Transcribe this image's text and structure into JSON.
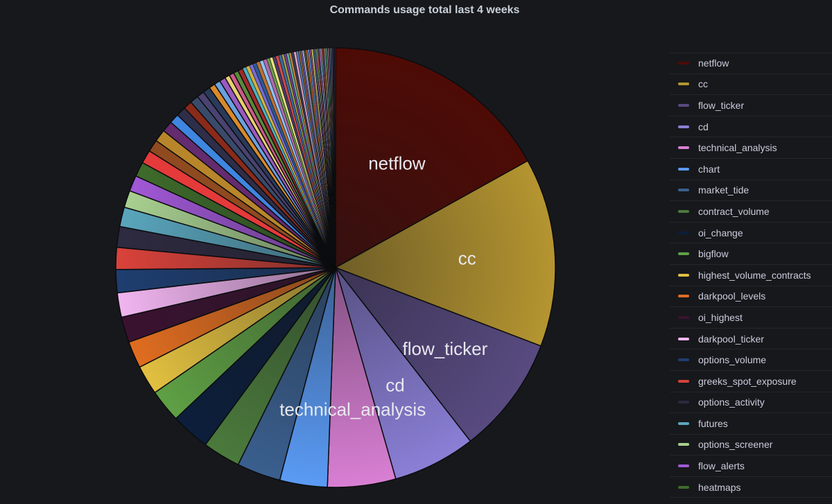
{
  "chart_data": {
    "type": "pie",
    "title": "Commands usage total last 4 weeks",
    "labeled_slices": [
      "netflow",
      "cc",
      "flow_ticker",
      "cd",
      "technical_analysis"
    ],
    "slices": [
      {
        "name": "netflow",
        "value": 18.9,
        "color": "#4e0b06"
      },
      {
        "name": "cc",
        "value": 15.5,
        "color": "#b59530"
      },
      {
        "name": "flow_ticker",
        "value": 9.7,
        "color": "#584a80"
      },
      {
        "name": "cd",
        "value": 6.8,
        "color": "#8a7fd6"
      },
      {
        "name": "technical_analysis",
        "value": 5.6,
        "color": "#d97fd4"
      },
      {
        "name": "chart",
        "value": 3.9,
        "color": "#5a9bf5"
      },
      {
        "name": "market_tide",
        "value": 3.6,
        "color": "#3a5f8e"
      },
      {
        "name": "contract_volume",
        "value": 3.1,
        "color": "#4b7a3c"
      },
      {
        "name": "oi_change",
        "value": 3.2,
        "color": "#0c1e3a"
      },
      {
        "name": "bigflow",
        "value": 2.7,
        "color": "#5fa044"
      },
      {
        "name": "highest_volume_contracts",
        "value": 2.4,
        "color": "#e2c040"
      },
      {
        "name": "darkpool_levels",
        "value": 2.2,
        "color": "#e06d20"
      },
      {
        "name": "oi_highest",
        "value": 2.1,
        "color": "#3a1230"
      },
      {
        "name": "darkpool_ticker",
        "value": 2.0,
        "color": "#f1b5f0"
      },
      {
        "name": "options_volume",
        "value": 1.9,
        "color": "#1e3e70"
      },
      {
        "name": "greeks_spot_exposure",
        "value": 1.8,
        "color": "#d9423a"
      },
      {
        "name": "options_activity",
        "value": 1.7,
        "color": "#2e2a40"
      },
      {
        "name": "futures",
        "value": 1.6,
        "color": "#5aa6bd"
      },
      {
        "name": "options_screener",
        "value": 1.4,
        "color": "#a8d090"
      },
      {
        "name": "flow_alerts",
        "value": 1.3,
        "color": "#a158d6"
      },
      {
        "name": "heatmaps",
        "value": 1.2,
        "color": "#3e6b2a"
      }
    ],
    "minor_slices": [
      {
        "value": 1.1,
        "color": "#e43a3a"
      },
      {
        "value": 1.0,
        "color": "#8f4a20"
      },
      {
        "value": 1.0,
        "color": "#b8862a"
      },
      {
        "value": 0.9,
        "color": "#642b6e"
      },
      {
        "value": 0.8,
        "color": "#3e86e0"
      },
      {
        "value": 0.8,
        "color": "#2e2e48"
      },
      {
        "value": 0.7,
        "color": "#8a2a1a"
      },
      {
        "value": 0.7,
        "color": "#3a4a6a"
      },
      {
        "value": 0.6,
        "color": "#4a4270"
      },
      {
        "value": 0.6,
        "color": "#2a3a5a"
      },
      {
        "value": 0.5,
        "color": "#d98a2a"
      },
      {
        "value": 0.5,
        "color": "#6aa0e0"
      },
      {
        "value": 0.5,
        "color": "#9a5ac0"
      },
      {
        "value": 0.4,
        "color": "#e8d070"
      },
      {
        "value": 0.4,
        "color": "#cc5a8a"
      },
      {
        "value": 0.4,
        "color": "#5a8a3a"
      },
      {
        "value": 0.4,
        "color": "#a02a2a"
      },
      {
        "value": 0.3,
        "color": "#4ab0c0"
      },
      {
        "value": 0.3,
        "color": "#d0b040"
      },
      {
        "value": 0.3,
        "color": "#7a6ad0"
      },
      {
        "value": 0.3,
        "color": "#2a5a9a"
      },
      {
        "value": 0.3,
        "color": "#c07030"
      },
      {
        "value": 0.3,
        "color": "#90c0f0"
      },
      {
        "value": 0.3,
        "color": "#b06ab0"
      },
      {
        "value": 0.25,
        "color": "#6a9a4a"
      },
      {
        "value": 0.25,
        "color": "#e8e080"
      },
      {
        "value": 0.25,
        "color": "#4a3a6a"
      },
      {
        "value": 0.25,
        "color": "#d04a4a"
      },
      {
        "value": 0.25,
        "color": "#3a6aa0"
      },
      {
        "value": 0.2,
        "color": "#a0a040"
      },
      {
        "value": 0.2,
        "color": "#7a3a9a"
      },
      {
        "value": 0.2,
        "color": "#5ab0a0"
      },
      {
        "value": 0.2,
        "color": "#c0803a"
      },
      {
        "value": 0.2,
        "color": "#3a3a5a"
      },
      {
        "value": 0.2,
        "color": "#e0a0c0"
      },
      {
        "value": 0.2,
        "color": "#4a7ab0"
      },
      {
        "value": 0.15,
        "color": "#9a6a30"
      },
      {
        "value": 0.15,
        "color": "#6a5ab0"
      },
      {
        "value": 0.15,
        "color": "#b0b0d0"
      },
      {
        "value": 0.15,
        "color": "#3a5a3a"
      },
      {
        "value": 0.15,
        "color": "#d06030"
      },
      {
        "value": 0.15,
        "color": "#5a8ad0"
      },
      {
        "value": 0.15,
        "color": "#8a4a6a"
      },
      {
        "value": 0.15,
        "color": "#c0c060"
      },
      {
        "value": 0.1,
        "color": "#4a6a8a"
      },
      {
        "value": 0.1,
        "color": "#a05ac0"
      },
      {
        "value": 0.1,
        "color": "#6ab06a"
      },
      {
        "value": 0.1,
        "color": "#e0704a"
      },
      {
        "value": 0.1,
        "color": "#3a4a7a"
      },
      {
        "value": 0.1,
        "color": "#c08ae0"
      },
      {
        "value": 0.1,
        "color": "#7ac0d0"
      },
      {
        "value": 0.1,
        "color": "#b04a3a"
      },
      {
        "value": 0.1,
        "color": "#5a5a8a"
      },
      {
        "value": 0.1,
        "color": "#d0a050"
      },
      {
        "value": 0.1,
        "color": "#4a9a7a"
      },
      {
        "value": 0.08,
        "color": "#8a8ac0"
      },
      {
        "value": 0.08,
        "color": "#c06a9a"
      },
      {
        "value": 0.08,
        "color": "#6a8a4a"
      },
      {
        "value": 0.08,
        "color": "#3a6a9a"
      },
      {
        "value": 0.08,
        "color": "#a0702a"
      },
      {
        "value": 0.08,
        "color": "#5a4a8a"
      },
      {
        "value": 0.08,
        "color": "#2a2a3a"
      },
      {
        "value": 0.08,
        "color": "#2a2a3a"
      },
      {
        "value": 0.08,
        "color": "#2a2a3a"
      }
    ],
    "legend_placement": "right",
    "grid": false
  }
}
